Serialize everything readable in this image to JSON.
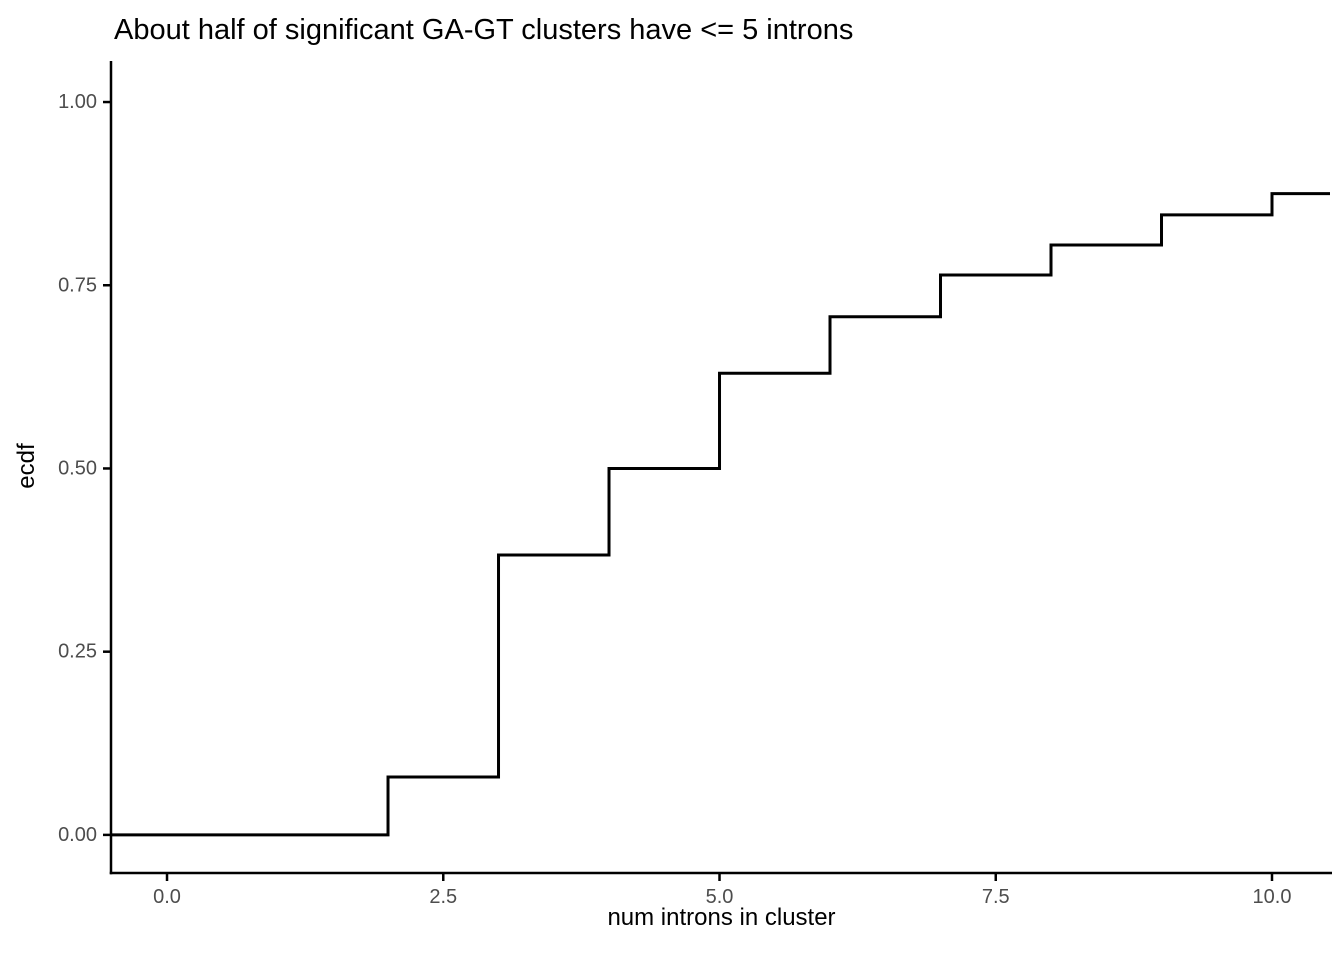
{
  "chart_data": {
    "type": "line",
    "subtype": "step-ecdf",
    "title": "About half of significant GA-GT clusters have <= 5 introns",
    "xlabel": "num introns in cluster",
    "ylabel": "ecdf",
    "xlim": [
      -0.507,
      10.543
    ],
    "ylim": [
      -0.052,
      1.056
    ],
    "grid": "off",
    "legend": "none",
    "x_ticks": {
      "values": [
        0,
        2.5,
        5,
        7.5,
        10
      ],
      "labels": [
        "0.0",
        "2.5",
        "5.0",
        "7.5",
        "10.0"
      ]
    },
    "y_ticks": {
      "values": [
        0,
        0.25,
        0.5,
        0.75,
        1.0
      ],
      "labels": [
        "0.00",
        "0.25",
        "0.50",
        "0.75",
        "1.00"
      ]
    },
    "series": [
      {
        "name": "ecdf",
        "start_y": 0,
        "steps": [
          {
            "x": 2,
            "y": 0.079
          },
          {
            "x": 3,
            "y": 0.382
          },
          {
            "x": 4,
            "y": 0.5
          },
          {
            "x": 5,
            "y": 0.63
          },
          {
            "x": 6,
            "y": 0.707
          },
          {
            "x": 7,
            "y": 0.764
          },
          {
            "x": 8,
            "y": 0.805
          },
          {
            "x": 9,
            "y": 0.846
          },
          {
            "x": 10,
            "y": 0.875
          }
        ],
        "extends_to_panel_edges": true
      }
    ],
    "colors": {
      "line": "#000000",
      "axis": "#000000",
      "tick": "#000000",
      "tick_label": "#4d4d4d",
      "title": "#000000",
      "axis_title": "#000000",
      "background": "#ffffff"
    }
  }
}
